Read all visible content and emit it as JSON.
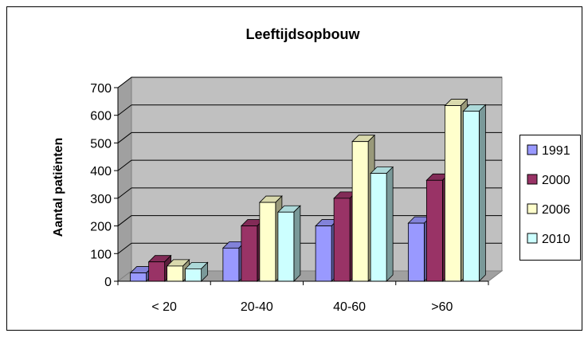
{
  "chart_data": {
    "type": "bar",
    "title": "Leeftijdsopbouw",
    "xlabel": "",
    "ylabel": "Aantal patiënten",
    "categories": [
      "< 20",
      "20-40",
      "40-60",
      ">60"
    ],
    "y_ticks": [
      "0",
      "100",
      "200",
      "300",
      "400",
      "500",
      "600",
      "700"
    ],
    "ylim": [
      0,
      700
    ],
    "grid": true,
    "three_d": true,
    "legend_position": "right",
    "series": [
      {
        "name": "1991",
        "color": "#9999FF",
        "values": [
          30,
          120,
          200,
          210
        ]
      },
      {
        "name": "2000",
        "color": "#993366",
        "values": [
          70,
          200,
          300,
          365
        ]
      },
      {
        "name": "2006",
        "color": "#FFFFCC",
        "values": [
          55,
          285,
          505,
          635
        ]
      },
      {
        "name": "2010",
        "color": "#CCFFFF",
        "values": [
          45,
          250,
          390,
          615
        ]
      }
    ]
  }
}
